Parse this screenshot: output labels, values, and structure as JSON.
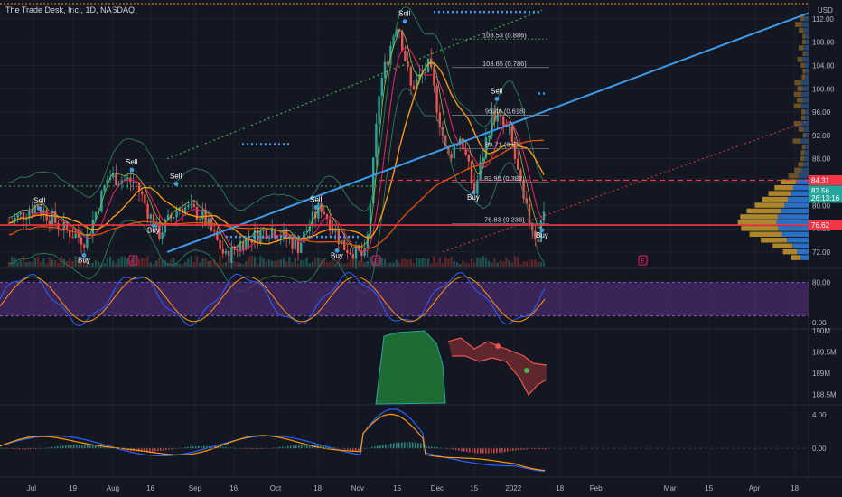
{
  "header": {
    "title": "The Trade Desk, Inc., 1D, NASDAQ"
  },
  "colors": {
    "background": "#131722",
    "grid": "#1e222d",
    "up": "#26a69a",
    "down": "#ef5350",
    "trend_blue": "#3d9be9",
    "support_red": "#f23645",
    "purple_band": "#4a2a6b",
    "orange": "#ff9800",
    "accent_green": "#4caf50"
  },
  "chart_data": [
    {
      "type": "candlestick",
      "name": "price",
      "currency": "USD",
      "y_ticks": [
        112.0,
        108.0,
        104.0,
        100.0,
        96.0,
        92.0,
        88.0,
        84.0,
        80.0,
        76.0,
        72.0
      ],
      "y_tick_labels": [
        "112.00",
        "108.00",
        "104.00",
        "100.00",
        "96.00",
        "92.00",
        "88.00",
        "84.00",
        "80.00",
        "76.00",
        "72.00"
      ],
      "ylim": [
        69.5,
        114
      ],
      "x_tick_labels": [
        "Jul",
        "19",
        "Aug",
        "16",
        "Sep",
        "16",
        "Oct",
        "18",
        "Nov",
        "15",
        "Dec",
        "15",
        "2022",
        "18",
        "Feb",
        "Mar",
        "15",
        "Apr",
        "18"
      ],
      "price_labels": [
        {
          "value": 84.31,
          "text": "84.31",
          "color": "#f23645"
        },
        {
          "value": 82.56,
          "text": "82.56",
          "color": "#26a69a"
        },
        {
          "value": 81.3,
          "text": "26:13:16",
          "color": "#26a69a"
        },
        {
          "value": 76.62,
          "text": "76.62",
          "color": "#f23645"
        }
      ],
      "fib_levels": [
        {
          "value": 108.53,
          "label": "108.53 (0.886)"
        },
        {
          "value": 103.65,
          "label": "103.65 (0.786)"
        },
        {
          "value": 95.46,
          "label": "95.46 (0.618)"
        },
        {
          "value": 89.71,
          "label": "89.71 (0.5)"
        },
        {
          "value": 83.95,
          "label": "83.95 (0.382)"
        },
        {
          "value": 76.83,
          "label": "76.83 (0.236)"
        }
      ],
      "signals": [
        {
          "text": "Sell",
          "x": 44,
          "price": 80.4
        },
        {
          "text": "Sell",
          "x": 146,
          "price": 87.0
        },
        {
          "text": "Sell",
          "x": 195,
          "price": 84.6
        },
        {
          "text": "Sell",
          "x": 350,
          "price": 80.6
        },
        {
          "text": "Sell",
          "x": 448,
          "price": 112.5
        },
        {
          "text": "Sell",
          "x": 550,
          "price": 99.2
        },
        {
          "text": "Buy",
          "x": 93,
          "price": 70.2
        },
        {
          "text": "Buy",
          "x": 170,
          "price": 75.3
        },
        {
          "text": "Buy",
          "x": 373,
          "price": 71.0
        },
        {
          "text": "Buy",
          "x": 524,
          "price": 81.0
        },
        {
          "text": "Buy",
          "x": 600,
          "price": 74.5
        }
      ],
      "earnings_marks": [
        "E",
        "E",
        "E"
      ]
    },
    {
      "type": "line",
      "name": "stochastic",
      "y_tick_labels": [
        "80.00",
        "0.00"
      ],
      "band": [
        20,
        80
      ],
      "ylim": [
        0,
        100
      ]
    },
    {
      "type": "area",
      "name": "volume_oscillator",
      "y_tick_labels": [
        "190M",
        "189.5M",
        "189M",
        "188.5M"
      ],
      "ylim": [
        188.3,
        190.0
      ]
    },
    {
      "type": "bar",
      "name": "macd",
      "y_tick_labels": [
        "4.00",
        "0.00"
      ],
      "ylim": [
        -2.8,
        5.0
      ]
    }
  ]
}
